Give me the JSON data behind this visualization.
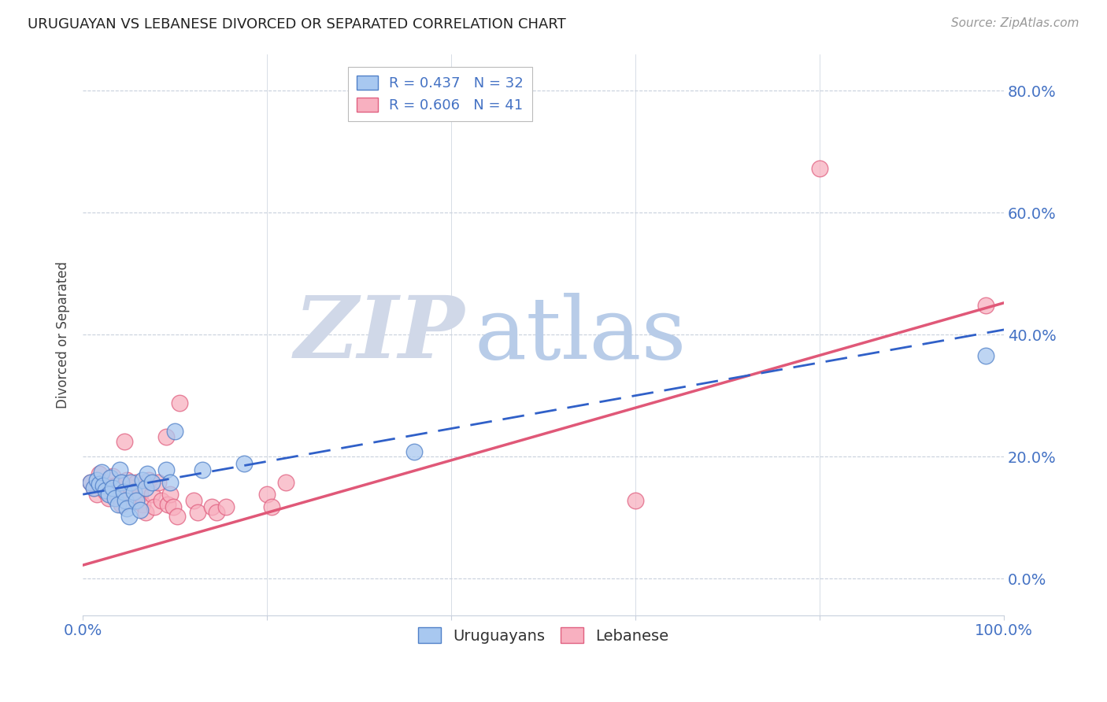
{
  "title": "URUGUAYAN VS LEBANESE DIVORCED OR SEPARATED CORRELATION CHART",
  "source": "Source: ZipAtlas.com",
  "ylabel": "Divorced or Separated",
  "xlim": [
    0.0,
    1.0
  ],
  "ylim": [
    -0.06,
    0.86
  ],
  "ytick_values": [
    0.0,
    0.2,
    0.4,
    0.6,
    0.8
  ],
  "xtick_values": [
    0.0,
    0.2,
    0.4,
    0.6,
    0.8,
    1.0
  ],
  "uruguayan_color": "#a8c8f0",
  "lebanese_color": "#f8b0c0",
  "uruguayan_edge_color": "#5080c8",
  "lebanese_edge_color": "#e06080",
  "uruguayan_line_color": "#3060c8",
  "lebanese_line_color": "#e05878",
  "tick_color": "#4472c4",
  "watermark_zip_color": "#d0d8e8",
  "watermark_atlas_color": "#b8cce8",
  "background_color": "#ffffff",
  "grid_color": "#c8d0dc",
  "uruguayan_points": [
    [
      0.008,
      0.158
    ],
    [
      0.012,
      0.148
    ],
    [
      0.015,
      0.162
    ],
    [
      0.018,
      0.155
    ],
    [
      0.02,
      0.175
    ],
    [
      0.022,
      0.152
    ],
    [
      0.025,
      0.145
    ],
    [
      0.028,
      0.138
    ],
    [
      0.03,
      0.165
    ],
    [
      0.032,
      0.148
    ],
    [
      0.035,
      0.132
    ],
    [
      0.038,
      0.122
    ],
    [
      0.04,
      0.178
    ],
    [
      0.042,
      0.158
    ],
    [
      0.044,
      0.142
    ],
    [
      0.046,
      0.128
    ],
    [
      0.048,
      0.115
    ],
    [
      0.05,
      0.102
    ],
    [
      0.052,
      0.158
    ],
    [
      0.055,
      0.142
    ],
    [
      0.058,
      0.128
    ],
    [
      0.062,
      0.112
    ],
    [
      0.065,
      0.162
    ],
    [
      0.068,
      0.148
    ],
    [
      0.07,
      0.172
    ],
    [
      0.075,
      0.158
    ],
    [
      0.09,
      0.178
    ],
    [
      0.095,
      0.158
    ],
    [
      0.1,
      0.242
    ],
    [
      0.13,
      0.178
    ],
    [
      0.175,
      0.188
    ],
    [
      0.36,
      0.208
    ],
    [
      0.98,
      0.365
    ]
  ],
  "lebanese_points": [
    [
      0.008,
      0.158
    ],
    [
      0.012,
      0.148
    ],
    [
      0.015,
      0.138
    ],
    [
      0.018,
      0.172
    ],
    [
      0.022,
      0.158
    ],
    [
      0.025,
      0.142
    ],
    [
      0.028,
      0.132
    ],
    [
      0.032,
      0.168
    ],
    [
      0.035,
      0.152
    ],
    [
      0.038,
      0.135
    ],
    [
      0.042,
      0.122
    ],
    [
      0.045,
      0.225
    ],
    [
      0.048,
      0.162
    ],
    [
      0.052,
      0.148
    ],
    [
      0.055,
      0.132
    ],
    [
      0.058,
      0.158
    ],
    [
      0.062,
      0.138
    ],
    [
      0.065,
      0.122
    ],
    [
      0.068,
      0.108
    ],
    [
      0.072,
      0.162
    ],
    [
      0.075,
      0.138
    ],
    [
      0.078,
      0.118
    ],
    [
      0.082,
      0.158
    ],
    [
      0.085,
      0.128
    ],
    [
      0.09,
      0.232
    ],
    [
      0.092,
      0.122
    ],
    [
      0.095,
      0.138
    ],
    [
      0.098,
      0.118
    ],
    [
      0.102,
      0.102
    ],
    [
      0.105,
      0.288
    ],
    [
      0.12,
      0.128
    ],
    [
      0.125,
      0.108
    ],
    [
      0.14,
      0.118
    ],
    [
      0.145,
      0.108
    ],
    [
      0.155,
      0.118
    ],
    [
      0.2,
      0.138
    ],
    [
      0.205,
      0.118
    ],
    [
      0.22,
      0.158
    ],
    [
      0.6,
      0.128
    ],
    [
      0.8,
      0.672
    ],
    [
      0.98,
      0.448
    ]
  ],
  "uruguayan_trendline": [
    [
      0.0,
      0.138
    ],
    [
      1.0,
      0.408
    ]
  ],
  "lebanese_trendline": [
    [
      0.0,
      0.022
    ],
    [
      1.0,
      0.452
    ]
  ]
}
